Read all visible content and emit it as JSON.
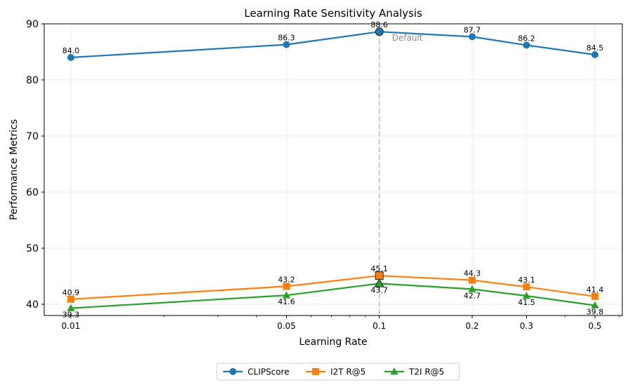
{
  "chart_data": {
    "type": "line",
    "title": "Learning Rate Sensitivity Analysis",
    "xlabel": "Learning Rate",
    "ylabel": "Performance Metrics",
    "xscale": "log",
    "x": [
      0.01,
      0.05,
      0.1,
      0.2,
      0.3,
      0.5
    ],
    "x_tick_labels": [
      "0.01",
      "0.05",
      "0.1",
      "0.2",
      "0.3",
      "0.5"
    ],
    "ylim": [
      38,
      90
    ],
    "y_ticks": [
      40,
      50,
      60,
      70,
      80,
      90
    ],
    "grid": true,
    "legend_position": "bottom-center",
    "series": [
      {
        "name": "CLIPScore",
        "color": "#1f77b4",
        "marker": "circle",
        "values": [
          84.0,
          86.3,
          88.6,
          87.7,
          86.2,
          84.5
        ],
        "labels": [
          "84.0",
          "86.3",
          "88.6",
          "87.7",
          "86.2",
          "84.5"
        ]
      },
      {
        "name": "I2T R@5",
        "color": "#ff7f0e",
        "marker": "square",
        "values": [
          40.9,
          43.2,
          45.1,
          44.3,
          43.1,
          41.4
        ],
        "labels": [
          "40.9",
          "43.2",
          "45.1",
          "44.3",
          "43.1",
          "41.4"
        ]
      },
      {
        "name": "T2I R@5",
        "color": "#2ca02c",
        "marker": "triangle",
        "values": [
          39.3,
          41.6,
          43.7,
          42.7,
          41.5,
          39.8
        ],
        "labels": [
          "39.3",
          "41.6",
          "43.7",
          "42.7",
          "41.5",
          "39.8"
        ]
      }
    ],
    "annotations": [
      {
        "text": "Default",
        "x": 0.1,
        "style": "dashed-vertical-line",
        "color": "#aaaaaa"
      }
    ]
  }
}
